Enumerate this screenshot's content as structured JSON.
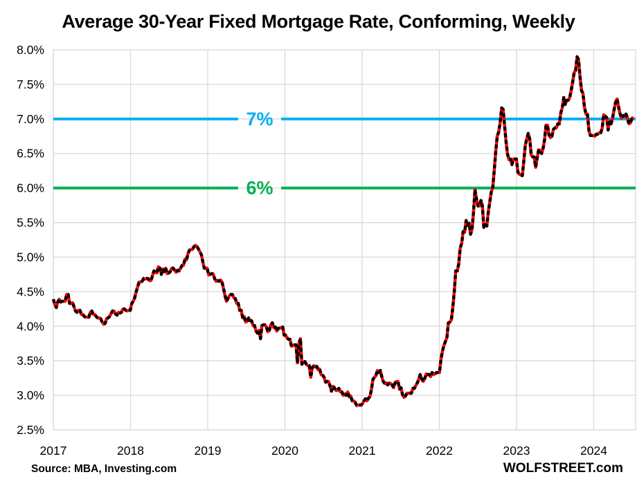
{
  "title": "Average 30-Year Fixed Mortgage Rate, Conforming, Weekly",
  "source": "Source: MBA, Investing.com",
  "branding": "WOLFSTREET.com",
  "colors": {
    "background": "#FFFFFF",
    "gridline": "#D9D9D9",
    "text": "#000000",
    "line_red": "#FF0000",
    "marker_black": "#000000",
    "ref_7pct": "#00B0F0",
    "ref_6pct": "#00B050"
  },
  "chart_data": {
    "type": "line",
    "title": "Average 30-Year Fixed Mortgage Rate, Conforming, Weekly",
    "xlabel": "",
    "ylabel": "",
    "grid": true,
    "legend": "none",
    "ylim": [
      2.5,
      8.0
    ],
    "xlim_years": [
      2017.0,
      2024.54
    ],
    "y_ticks": [
      {
        "label": "8.0%",
        "value": 8.0
      },
      {
        "label": "7.5%",
        "value": 7.5
      },
      {
        "label": "7.0%",
        "value": 7.0
      },
      {
        "label": "6.5%",
        "value": 6.5
      },
      {
        "label": "6.0%",
        "value": 6.0
      },
      {
        "label": "5.5%",
        "value": 5.5
      },
      {
        "label": "5.0%",
        "value": 5.0
      },
      {
        "label": "4.5%",
        "value": 4.5
      },
      {
        "label": "4.0%",
        "value": 4.0
      },
      {
        "label": "3.5%",
        "value": 3.5
      },
      {
        "label": "3.0%",
        "value": 3.0
      },
      {
        "label": "2.5%",
        "value": 2.5
      }
    ],
    "x_ticks": [
      {
        "label": "2017",
        "year": 2017
      },
      {
        "label": "2018",
        "year": 2018
      },
      {
        "label": "2019",
        "year": 2019
      },
      {
        "label": "2020",
        "year": 2020
      },
      {
        "label": "2021",
        "year": 2021
      },
      {
        "label": "2022",
        "year": 2022
      },
      {
        "label": "2023",
        "year": 2023
      },
      {
        "label": "2024",
        "year": 2024
      }
    ],
    "reference_lines": [
      {
        "label": "7%",
        "value": 7.0,
        "color": "#00B0F0"
      },
      {
        "label": "6%",
        "value": 6.0,
        "color": "#00B050"
      }
    ],
    "series": [
      {
        "name": "Average 30-year fixed mortgage rate, weekly",
        "color": "#FF0000",
        "marker_color": "#000000",
        "start_year": 2017,
        "interval_weeks": 1,
        "unit": "percent",
        "values": [
          4.39,
          4.32,
          4.27,
          4.35,
          4.39,
          4.35,
          4.36,
          4.36,
          4.36,
          4.46,
          4.46,
          4.33,
          4.33,
          4.34,
          4.28,
          4.22,
          4.2,
          4.23,
          4.23,
          4.17,
          4.17,
          4.14,
          4.13,
          4.13,
          4.13,
          4.2,
          4.22,
          4.17,
          4.17,
          4.14,
          4.12,
          4.12,
          4.11,
          4.06,
          4.03,
          4.04,
          4.11,
          4.12,
          4.14,
          4.18,
          4.22,
          4.22,
          4.18,
          4.16,
          4.2,
          4.19,
          4.2,
          4.25,
          4.25,
          4.23,
          4.22,
          4.23,
          4.23,
          4.33,
          4.36,
          4.41,
          4.5,
          4.57,
          4.64,
          4.64,
          4.65,
          4.69,
          4.68,
          4.69,
          4.69,
          4.66,
          4.66,
          4.73,
          4.8,
          4.78,
          4.77,
          4.86,
          4.84,
          4.75,
          4.83,
          4.79,
          4.84,
          4.76,
          4.77,
          4.79,
          4.84,
          4.84,
          4.81,
          4.78,
          4.81,
          4.8,
          4.84,
          4.88,
          4.88,
          4.97,
          4.96,
          5.05,
          5.1,
          5.11,
          5.11,
          5.15,
          5.17,
          5.16,
          5.12,
          5.08,
          5.04,
          4.94,
          4.84,
          4.84,
          4.84,
          4.74,
          4.75,
          4.76,
          4.76,
          4.69,
          4.65,
          4.66,
          4.65,
          4.67,
          4.64,
          4.55,
          4.45,
          4.36,
          4.4,
          4.44,
          4.46,
          4.46,
          4.41,
          4.4,
          4.33,
          4.33,
          4.23,
          4.23,
          4.12,
          4.14,
          4.06,
          4.07,
          4.12,
          4.08,
          4.08,
          4.01,
          4.01,
          3.93,
          3.9,
          3.94,
          3.82,
          4.01,
          4.02,
          4.02,
          3.99,
          3.92,
          3.94,
          4.02,
          4.05,
          3.98,
          3.99,
          3.93,
          3.97,
          3.97,
          3.98,
          3.99,
          3.87,
          3.87,
          3.83,
          3.81,
          3.81,
          3.71,
          3.72,
          3.73,
          3.73,
          3.47,
          3.74,
          3.82,
          3.45,
          3.47,
          3.49,
          3.45,
          3.43,
          3.43,
          3.26,
          3.4,
          3.43,
          3.41,
          3.42,
          3.37,
          3.38,
          3.3,
          3.29,
          3.26,
          3.19,
          3.2,
          3.2,
          3.14,
          3.06,
          3.13,
          3.11,
          3.07,
          3.07,
          3.1,
          3.05,
          3.05,
          3.0,
          3.02,
          3.0,
          3.05,
          2.98,
          2.99,
          2.92,
          2.92,
          2.9,
          2.85,
          2.86,
          2.86,
          2.86,
          2.88,
          2.92,
          2.95,
          2.92,
          2.96,
          2.98,
          3.08,
          3.23,
          3.26,
          3.28,
          3.36,
          3.33,
          3.36,
          3.27,
          3.2,
          3.17,
          3.18,
          3.15,
          3.18,
          3.17,
          3.15,
          3.11,
          3.18,
          3.2,
          3.2,
          3.09,
          3.11,
          3.01,
          2.97,
          2.99,
          3.03,
          3.03,
          3.03,
          3.03,
          3.1,
          3.1,
          3.14,
          3.18,
          3.23,
          3.3,
          3.24,
          3.2,
          3.24,
          3.31,
          3.3,
          3.3,
          3.27,
          3.33,
          3.3,
          3.31,
          3.33,
          3.33,
          3.33,
          3.52,
          3.64,
          3.72,
          3.78,
          3.83,
          4.05,
          4.06,
          4.09,
          4.27,
          4.5,
          4.8,
          4.8,
          4.9,
          5.13,
          5.2,
          5.37,
          5.36,
          5.53,
          5.46,
          5.49,
          5.33,
          5.4,
          5.65,
          5.98,
          5.84,
          5.74,
          5.74,
          5.82,
          5.74,
          5.43,
          5.47,
          5.45,
          5.65,
          5.8,
          5.94,
          6.01,
          6.25,
          6.52,
          6.75,
          6.81,
          6.94,
          7.16,
          7.14,
          6.9,
          6.67,
          6.49,
          6.41,
          6.42,
          6.34,
          6.42,
          6.42,
          6.42,
          6.23,
          6.2,
          6.19,
          6.18,
          6.39,
          6.62,
          6.71,
          6.79,
          6.71,
          6.48,
          6.45,
          6.45,
          6.3,
          6.43,
          6.55,
          6.55,
          6.5,
          6.57,
          6.69,
          6.91,
          6.91,
          6.77,
          6.73,
          6.75,
          6.85,
          6.87,
          6.87,
          6.93,
          6.93,
          7.09,
          7.16,
          7.31,
          7.21,
          7.27,
          7.27,
          7.31,
          7.41,
          7.53,
          7.67,
          7.7,
          7.9,
          7.86,
          7.61,
          7.41,
          7.37,
          7.17,
          7.07,
          7.07,
          6.83,
          6.76,
          6.76,
          6.76,
          6.75,
          6.78,
          6.78,
          6.8,
          6.8,
          6.87,
          7.06,
          7.04,
          7.02,
          6.84,
          6.97,
          6.93,
          7.01,
          7.13,
          7.24,
          7.29,
          7.18,
          7.08,
          7.01,
          7.05,
          7.03,
          7.07,
          7.02,
          6.93,
          6.94,
          7.0,
          7.03
        ]
      }
    ]
  }
}
